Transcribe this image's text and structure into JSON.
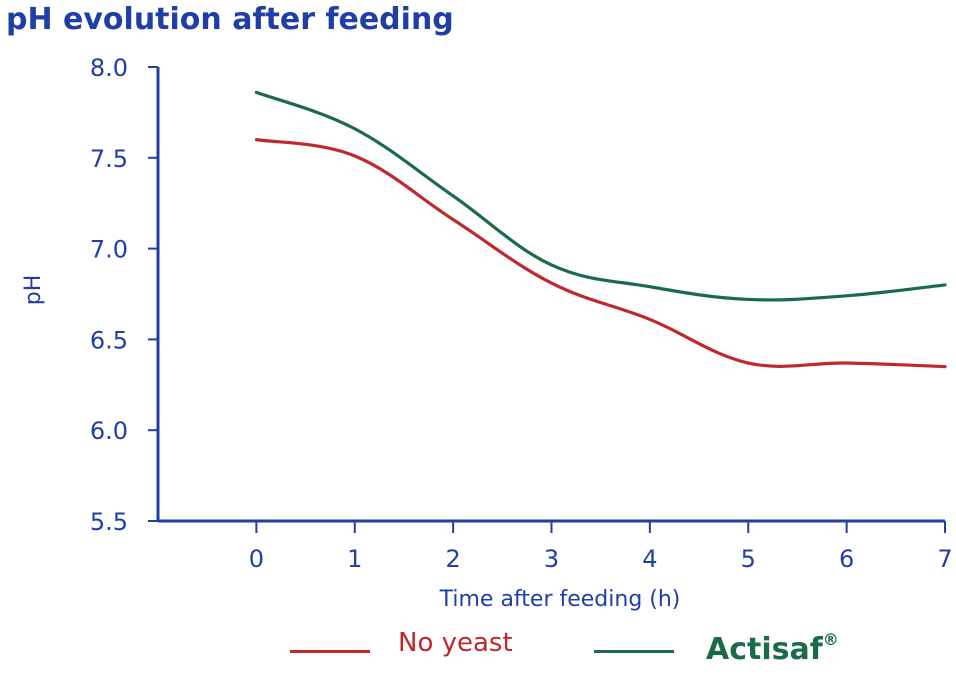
{
  "chart_data": {
    "type": "line",
    "title": "pH evolution after feeding",
    "xlabel": "Time after feeding (h)",
    "ylabel": "pH",
    "x": [
      0,
      1,
      2,
      3,
      4,
      5,
      6,
      7
    ],
    "xlim": [
      -1,
      7
    ],
    "ylim": [
      5.5,
      8.0
    ],
    "yticks": [
      "5.5",
      "6.0",
      "6.5",
      "7.0",
      "7.5",
      "8.0"
    ],
    "xticks": [
      "0",
      "1",
      "2",
      "3",
      "4",
      "5",
      "6",
      "7"
    ],
    "grid": false,
    "legend_position": "bottom",
    "series": [
      {
        "name": "No yeast",
        "color": "#c0282d",
        "values": [
          7.6,
          7.51,
          7.16,
          6.81,
          6.61,
          6.37,
          6.37,
          6.35
        ]
      },
      {
        "name": "Actisaf®",
        "color": "#1a6b4a",
        "values": [
          7.86,
          7.66,
          7.29,
          6.91,
          6.79,
          6.72,
          6.74,
          6.8
        ]
      }
    ]
  },
  "legend": {
    "no_yeast_label": "No yeast",
    "actisaf_label": "Actisaf",
    "actisaf_mark": "®"
  }
}
